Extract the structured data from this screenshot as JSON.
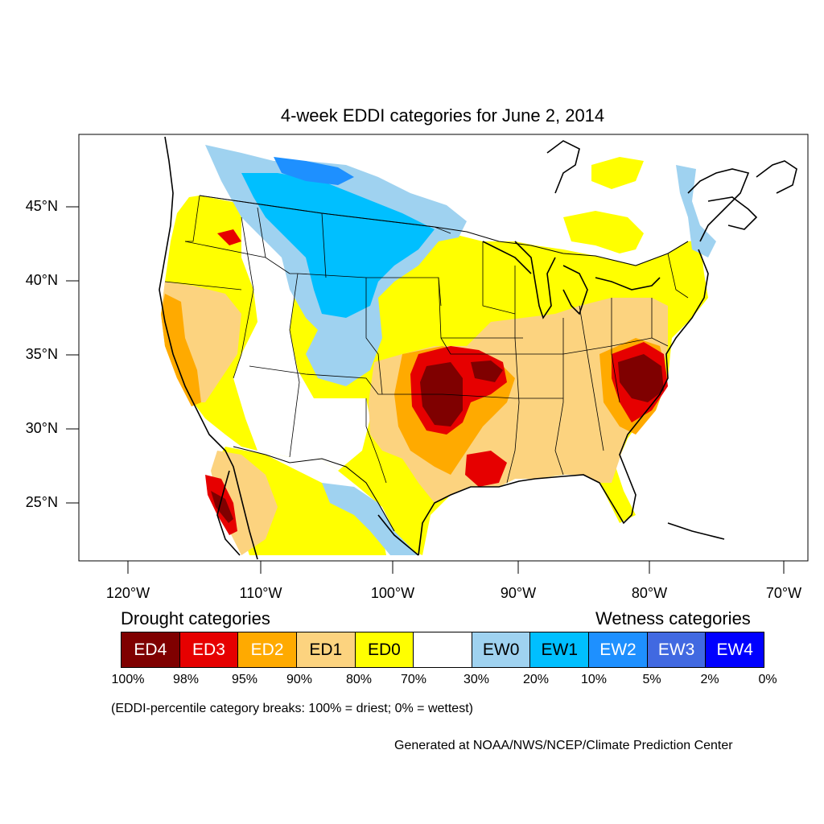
{
  "title": "4-week EDDI categories for June 2, 2014",
  "lat_labels": [
    "45°N",
    "40°N",
    "35°N",
    "30°N",
    "25°N"
  ],
  "lon_labels": [
    "120°W",
    "110°W",
    "100°W",
    "90°W",
    "80°W",
    "70°W"
  ],
  "legend": {
    "drought_title": "Drought categories",
    "wetness_title": "Wetness categories",
    "categories": [
      {
        "label": "ED4",
        "color": "#7f0000",
        "text_color": "#ffffff"
      },
      {
        "label": "ED3",
        "color": "#e60000",
        "text_color": "#ffffff"
      },
      {
        "label": "ED2",
        "color": "#ffaa00",
        "text_color": "#ffffff"
      },
      {
        "label": "ED1",
        "color": "#fcd37f",
        "text_color": "#000000"
      },
      {
        "label": "ED0",
        "color": "#ffff00",
        "text_color": "#000000"
      },
      {
        "label": "",
        "color": "#ffffff",
        "text_color": "#000000"
      },
      {
        "label": "EW0",
        "color": "#9fd2f0",
        "text_color": "#000000"
      },
      {
        "label": "EW1",
        "color": "#00bfff",
        "text_color": "#000000"
      },
      {
        "label": "EW2",
        "color": "#1e90ff",
        "text_color": "#ffffff"
      },
      {
        "label": "EW3",
        "color": "#4169e1",
        "text_color": "#ffffff"
      },
      {
        "label": "EW4",
        "color": "#0000ff",
        "text_color": "#ffffff"
      }
    ],
    "percent_breaks": [
      "100%",
      "98%",
      "95%",
      "90%",
      "80%",
      "70%",
      "30%",
      "20%",
      "10%",
      "5%",
      "2%",
      "0%"
    ]
  },
  "note": "(EDDI-percentile category breaks: 100% = driest; 0% = wettest)",
  "credit": "Generated at NOAA/NWS/NCEP/Climate Prediction Center"
}
